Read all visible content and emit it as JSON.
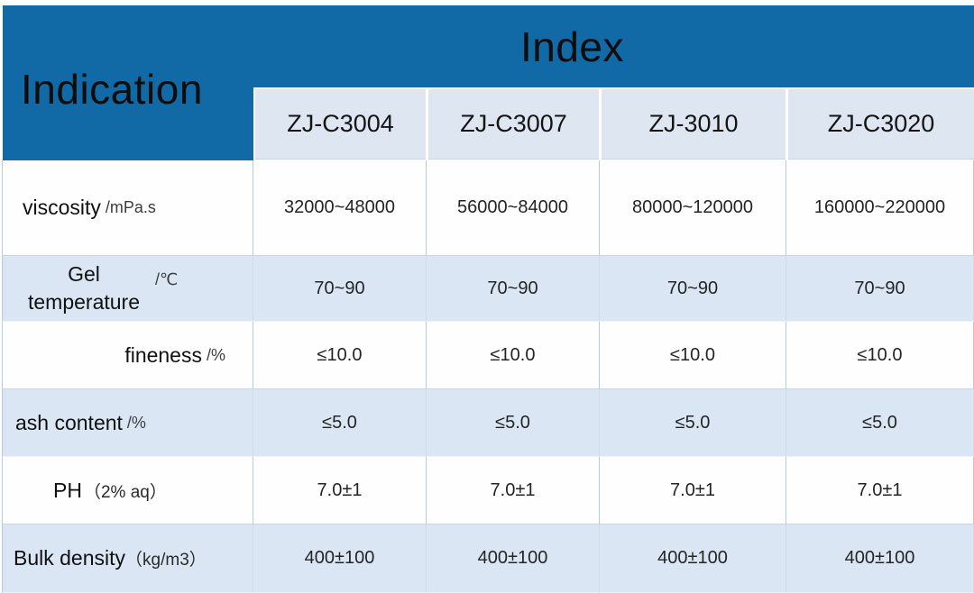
{
  "table": {
    "title_row_header": "Indication",
    "title_col_header": "Index",
    "products": [
      "ZJ-C3004",
      "ZJ-C3007",
      "ZJ-3010",
      "ZJ-C3020"
    ],
    "rows": [
      {
        "label": "viscosity",
        "unit": "/mPa.s",
        "values": [
          "32000~48000",
          "56000~84000",
          "80000~120000",
          "160000~220000"
        ]
      },
      {
        "label": "Gel temperature",
        "unit": "/℃",
        "values": [
          "70~90",
          "70~90",
          "70~90",
          "70~90"
        ]
      },
      {
        "label": "fineness",
        "unit": "/%",
        "values": [
          "≤10.0",
          "≤10.0",
          "≤10.0",
          "≤10.0"
        ]
      },
      {
        "label": "ash content",
        "unit": "/%",
        "values": [
          "≤5.0",
          "≤5.0",
          "≤5.0",
          "≤5.0"
        ]
      },
      {
        "label": "PH",
        "unit": "（2% aq）",
        "values": [
          "7.0±1",
          "7.0±1",
          "7.0±1",
          "7.0±1"
        ]
      },
      {
        "label": "Bulk density",
        "unit": "（kg/m3）",
        "values": [
          "400±100",
          "400±100",
          "400±100",
          "400±100"
        ]
      }
    ]
  },
  "colors": {
    "header_blue": "#116aa6",
    "subheader_bg": "#dee6f1",
    "alt_row_bg": "#dbe6f4",
    "border": "#b9c9dc",
    "text": "#0d0d0d"
  }
}
